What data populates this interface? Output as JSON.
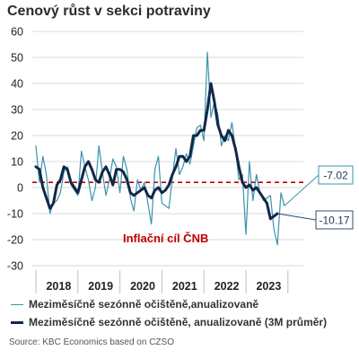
{
  "title": "Cenový růst v sekci potraviny",
  "source": "Source: KBC Economics based on CZSO",
  "colors": {
    "series_thin": "#3a93ad",
    "series_thick": "#122748",
    "target_line": "#c00000",
    "grid": "#d9d9d9"
  },
  "chart_data": {
    "type": "line",
    "ylim": [
      -30,
      60
    ],
    "yticks": [
      -30,
      -20,
      -10,
      0,
      10,
      20,
      30,
      40,
      50,
      60
    ],
    "grid": true,
    "x_year_labels": [
      "2018",
      "2019",
      "2020",
      "2021",
      "2022",
      "2023"
    ],
    "target_value": 2,
    "target_label": "Inflační cíl ČNB",
    "series": [
      {
        "name": "Meziměsíčně sezónně očištěně,anualizovaně",
        "line": "thin",
        "end_label": "-7.02",
        "values": [
          16,
          2,
          12,
          5,
          -10,
          -6,
          -5,
          -2,
          6,
          8,
          1,
          -1,
          -3,
          14,
          8,
          3,
          -5,
          0,
          16,
          6,
          -3,
          3,
          11,
          8,
          -2,
          12,
          7,
          -4,
          -9,
          3,
          -1,
          2,
          -6,
          -14,
          7,
          12,
          -6,
          -7,
          -8,
          4,
          15,
          5,
          8,
          13,
          9,
          16,
          23,
          24,
          18,
          52,
          27,
          33,
          28,
          16,
          20,
          18,
          25,
          15,
          3,
          5,
          -18,
          10,
          -5,
          5,
          -2,
          -5,
          -4,
          -3,
          -16,
          -22,
          -2,
          -7
        ]
      },
      {
        "name": "Meziměsíčně sezónně očištěně, anualizovaně (3M průměr)",
        "line": "thick",
        "end_label": "-10.17",
        "values": [
          8,
          7,
          0,
          -4,
          -8,
          -6,
          1,
          3,
          8,
          7,
          2,
          0,
          -2,
          3,
          8,
          10,
          7,
          3,
          2,
          6,
          8,
          5,
          1,
          7,
          7,
          6,
          3,
          -2,
          -3,
          -2,
          -1,
          0,
          -3,
          -4,
          -1,
          0,
          -2,
          -1,
          1,
          5,
          8,
          12,
          12,
          10,
          12,
          20,
          20,
          22,
          22,
          30,
          40,
          33,
          24,
          20,
          18,
          22,
          20,
          15,
          8,
          2,
          0,
          1,
          -1,
          0,
          -2,
          -4,
          -6,
          -12,
          -11,
          -10
        ]
      }
    ]
  }
}
